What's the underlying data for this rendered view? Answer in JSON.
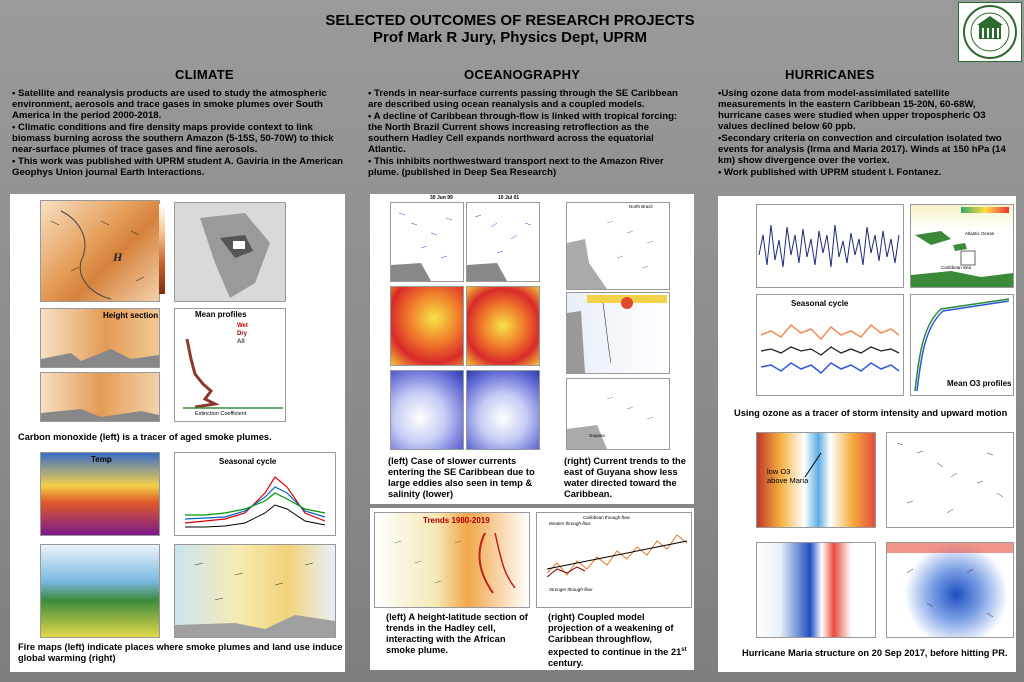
{
  "header": {
    "title": "SELECTED OUTCOMES OF RESEARCH PROJECTS",
    "subtitle": "Prof Mark R Jury, Physics Dept, UPRM"
  },
  "columns": {
    "climate": {
      "heading": "CLIMATE",
      "bullets": [
        "• Satellite and reanalysis products are used to study the atmospheric environment, aerosols and trace gases in smoke plumes over South America in the period 2000-2018.",
        "• Climatic conditions and fire density maps provide context to link biomass burning across the southern Amazon (5-15S, 50-70W) to thick near-surface plumes of trace gases and fine aerosols.",
        "• This work was published with UPRM student A. Gaviria in the American Geophys Union journal Earth Interactions."
      ],
      "fig_labels": {
        "height_section": "Height section",
        "mean_profiles": "Mean profiles",
        "temp": "Temp",
        "seasonal_cycle": "Seasonal cycle",
        "wet": "Wet",
        "dry": "Dry",
        "all": "All",
        "extinction": "Extinction Coefficient"
      },
      "captions": {
        "co": "Carbon monoxide (left) is a tracer of aged smoke plumes.",
        "fire": "Fire maps (left) indicate places where smoke plumes and land use induce global warming (right)"
      }
    },
    "oceanography": {
      "heading": "OCEANOGRAPHY",
      "bullets": [
        "• Trends in near-surface currents passing through the SE Caribbean are described using ocean reanalysis and a coupled models.",
        "• A decline of Caribbean through-flow is linked with tropical forcing: the North Brazil Current shows increasing retroflection as the southern Hadley Cell expands northward across the equatorial Atlantic.",
        "• This inhibits northwestward transport next to the Amazon River plume. (published in Deep Sea Research)"
      ],
      "fig_labels": {
        "date1": "30 Jun 99",
        "date2": "10 Jul 01",
        "north_brazil": "North Brazil",
        "guyana": "Guyana",
        "trends": "Trends 1980-2019",
        "weaker": "Weaker through-flow",
        "stronger": "Stronger through-flow",
        "throughflow_title": "Caribbean through-flow"
      },
      "captions": {
        "left": "(left) Case of slower currents entering the SE Caribbean due to large eddies also seen in temp & salinity (lower)",
        "right": "(right) Current trends to the east of Guyana show less water directed toward the Caribbean.",
        "hadley": "(left) A height-latitude section of trends in the Hadley cell, interacting with the African smoke plume.",
        "coupled_a": "(right) Coupled model projection of a weakening of Caribbean throughflow, expected to continue in the 21",
        "coupled_sup": "st",
        "coupled_b": " century."
      }
    },
    "hurricanes": {
      "heading": "HURRICANES",
      "bullets": [
        "•Using ozone data from model-assimilated satellite measurements in the eastern Caribbean 15-20N, 60-68W, hurricane cases were studied when upper tropospheric O3 values declined below 60 ppb.",
        "•Secondary criteria on convection and circulation isolated two events for analysis (Irma and Maria 2017). Winds at 150 hPa (14 km) show divergence over the vortex.",
        "• Work published with UPRM student I. Fontanez."
      ],
      "fig_labels": {
        "seasonal_cycle": "Seasonal cycle",
        "mean_o3": "Mean O3 profiles",
        "low_o3": "low O3 above Maria",
        "atlantic": "Atlantic Ocean",
        "caribbean": "Caribbean Sea"
      },
      "captions": {
        "ozone": "Using ozone as a tracer of storm intensity and upward motion",
        "maria": "Hurricane Maria structure on 20 Sep 2017, before hitting PR."
      }
    }
  },
  "colors": {
    "background": "#8c8c8c",
    "panel": "#ffffff",
    "logo_green": "#2d6a2d"
  }
}
